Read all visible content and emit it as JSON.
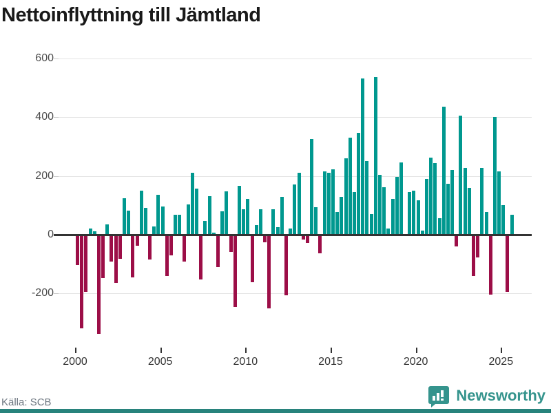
{
  "title": "Nettoinflyttning till Jämtland",
  "source": "Källa: SCB",
  "branding": {
    "logo_text": "Newsworthy",
    "logo_icon": "bar-chart-speech-bubble"
  },
  "colors": {
    "positive_bar": "#00988f",
    "negative_bar": "#9c0e47",
    "zero_axis": "#333333",
    "gridline": "#e4e4e4",
    "brand_teal": "#35948d",
    "bottom_strip": "#28837c"
  },
  "chart_data": {
    "type": "bar",
    "title": "Nettoinflyttning till Jämtland",
    "xlabel": "",
    "ylabel": "",
    "x_unit": "quarter",
    "x_start": "2000-Q1",
    "x_end": "2025-Q3",
    "values": [
      -100,
      -315,
      -190,
      21,
      12,
      -335,
      -145,
      34,
      -88,
      -161,
      -78,
      124,
      81,
      -143,
      -33,
      149,
      91,
      -80,
      28,
      136,
      96,
      -138,
      -66,
      69,
      67,
      -87,
      104,
      211,
      158,
      -150,
      48,
      132,
      6,
      -107,
      79,
      147,
      -54,
      -243,
      166,
      86,
      123,
      -158,
      33,
      87,
      -22,
      -248,
      87,
      26,
      128,
      -203,
      20,
      170,
      211,
      -13,
      -25,
      326,
      94,
      -60,
      215,
      211,
      223,
      77,
      129,
      260,
      330,
      145,
      347,
      533,
      252,
      70,
      538,
      205,
      161,
      22,
      123,
      196,
      247,
      2,
      145,
      150,
      117,
      15,
      190,
      263,
      243,
      57,
      435,
      174,
      221,
      -36,
      406,
      228,
      160,
      -138,
      -75,
      227,
      78,
      -200,
      402,
      215,
      100,
      -190,
      67
    ],
    "x_tick_labels": [
      "2000",
      "2005",
      "2010",
      "2015",
      "2020",
      "2025"
    ],
    "y_ticks": [
      600,
      400,
      200,
      0,
      -200
    ],
    "ylim": [
      -420,
      623
    ],
    "grid": "horizontal",
    "legend": "none",
    "positive_color": "#00988f",
    "negative_color": "#9c0e47"
  }
}
